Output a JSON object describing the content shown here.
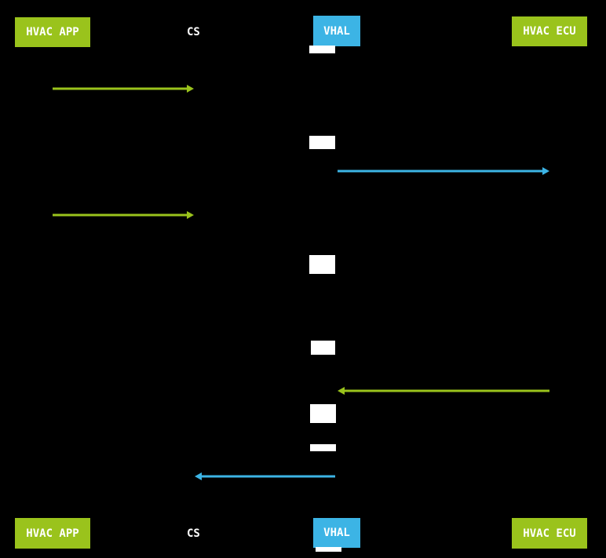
{
  "participants": {
    "hvac_app": "HVAC APP",
    "cs": "CS",
    "vhal": "VHAL",
    "hvac_ecu": "HVAC ECU"
  },
  "colors": {
    "green": "#9ac31c",
    "blue": "#3cb4e5",
    "activation": "#ffffff"
  },
  "messages": [
    {
      "from": "hvac_app",
      "to": "cs",
      "color": "green"
    },
    {
      "from": "vhal",
      "to": "hvac_ecu",
      "color": "blue"
    },
    {
      "from": "hvac_app",
      "to": "cs",
      "color": "green"
    },
    {
      "from": "hvac_ecu",
      "to": "vhal",
      "color": "green"
    },
    {
      "from": "vhal",
      "to": "cs",
      "color": "blue"
    }
  ]
}
